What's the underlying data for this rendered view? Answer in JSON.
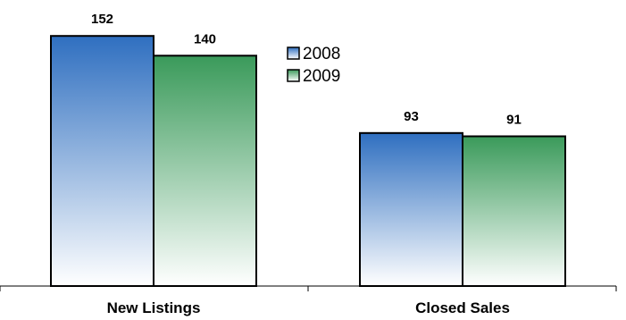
{
  "chart_data": {
    "type": "bar",
    "categories": [
      "New Listings",
      "Closed Sales"
    ],
    "series": [
      {
        "name": "2008",
        "values": [
          152,
          93
        ],
        "color_top": "#2f6fc0",
        "color_bottom": "#ffffff"
      },
      {
        "name": "2009",
        "values": [
          140,
          91
        ],
        "color_top": "#3a9a5a",
        "color_bottom": "#ffffff"
      }
    ],
    "ylim": [
      0,
      157
    ],
    "legend": "inside-middle",
    "grid": false,
    "data_labels": true
  }
}
